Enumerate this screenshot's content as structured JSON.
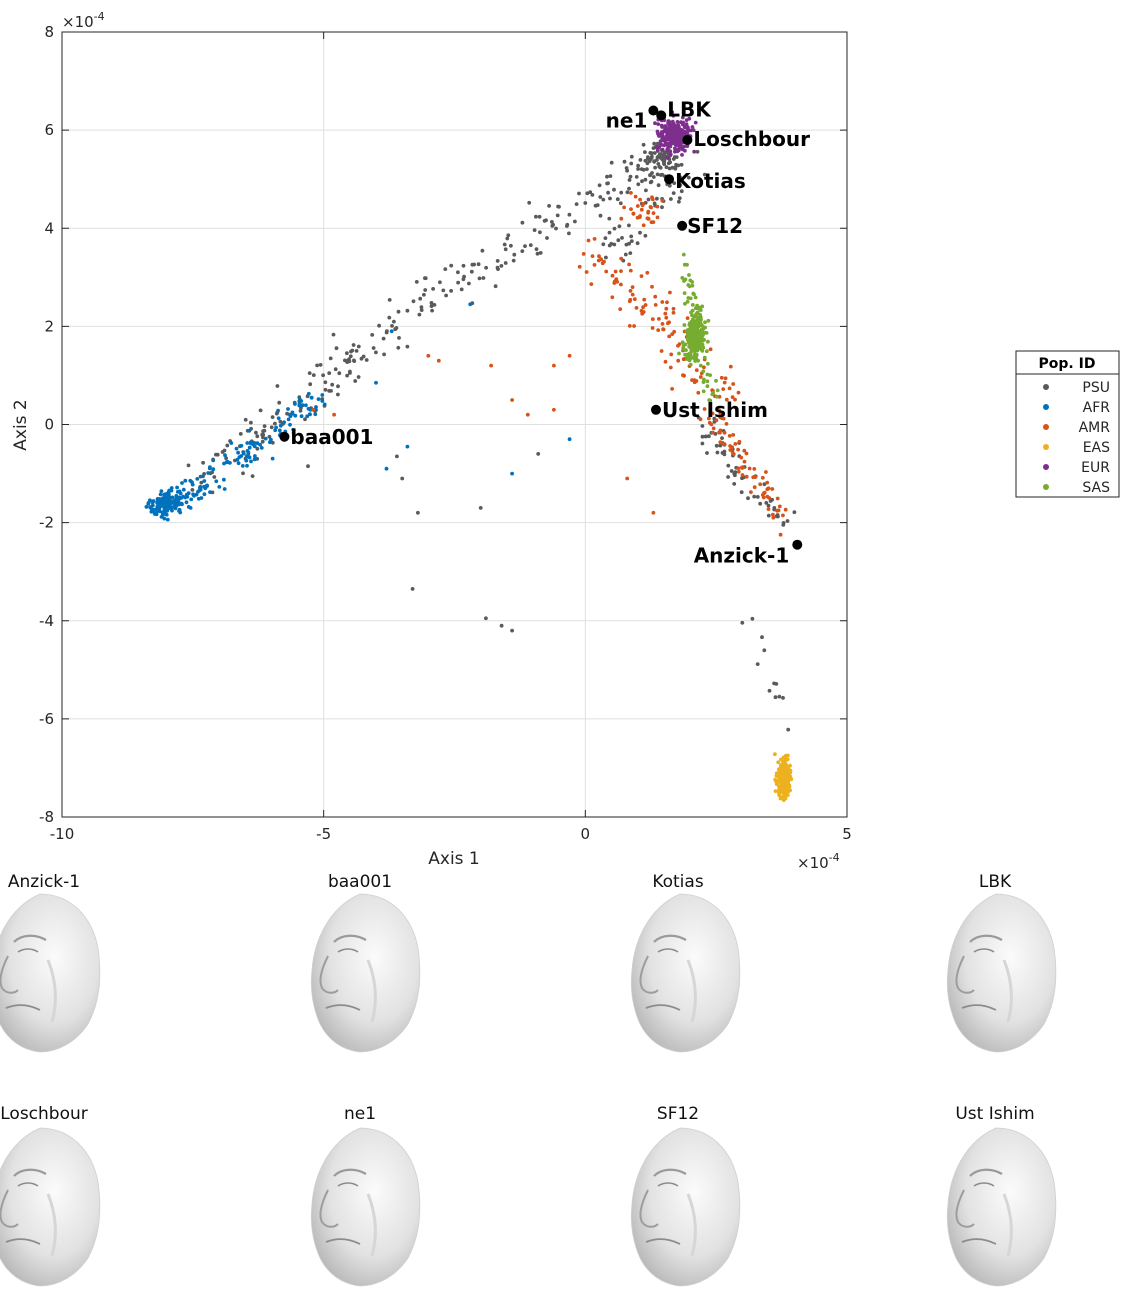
{
  "chart_data": {
    "type": "scatter",
    "xlabel": "Axis 1",
    "ylabel": "Axis 2",
    "x_exponent_label": "×10",
    "x_exponent": "-4",
    "y_exponent_label": "×10",
    "y_exponent": "-4",
    "xlim": [
      -10,
      5
    ],
    "ylim": [
      -8,
      8
    ],
    "xticks": [
      -10,
      -5,
      0,
      5
    ],
    "yticks": [
      -8,
      -6,
      -4,
      -2,
      0,
      2,
      4,
      6,
      8
    ],
    "grid": true,
    "legend": {
      "title": "Pop. ID",
      "placement": "right",
      "entries": [
        "PSU",
        "AFR",
        "AMR",
        "EAS",
        "EUR",
        "SAS"
      ]
    },
    "series_colors": {
      "PSU": "#5a5a5a",
      "AFR": "#0072bd",
      "AMR": "#d95319",
      "EAS": "#edb120",
      "EUR": "#7e2f8e",
      "SAS": "#77ac30"
    },
    "cluster_centers": {
      "AFR": [
        -8.0,
        -1.6
      ],
      "EUR": [
        1.7,
        5.9
      ],
      "SAS": [
        2.1,
        1.8
      ],
      "EAS": [
        3.8,
        -7.2
      ]
    },
    "ancient_samples": [
      {
        "name": "Anzick-1",
        "x": 4.05,
        "y": -2.45
      },
      {
        "name": "baa001",
        "x": -5.75,
        "y": -0.25
      },
      {
        "name": "Kotias",
        "x": 1.6,
        "y": 5.0
      },
      {
        "name": "LBK",
        "x": 1.45,
        "y": 6.3
      },
      {
        "name": "Loschbour",
        "x": 1.95,
        "y": 5.8
      },
      {
        "name": "ne1",
        "x": 1.3,
        "y": 6.4
      },
      {
        "name": "SF12",
        "x": 1.85,
        "y": 4.05
      },
      {
        "name": "Ust Ishim",
        "x": 1.35,
        "y": 0.3
      }
    ]
  },
  "faces": [
    "Anzick-1",
    "baa001",
    "Kotias",
    "LBK",
    "Loschbour",
    "ne1",
    "SF12",
    "Ust Ishim"
  ]
}
